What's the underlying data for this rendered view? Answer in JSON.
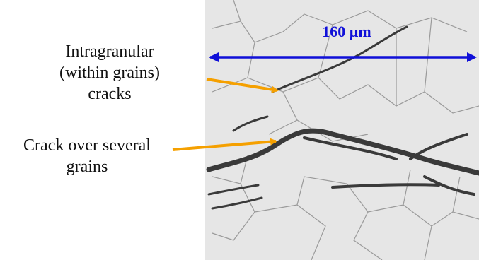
{
  "annotations": [
    {
      "lines": [
        "Intragranular",
        "(within grains)",
        "cracks"
      ]
    },
    {
      "lines": [
        "Crack over several",
        "grains"
      ]
    }
  ],
  "scale_bar": {
    "label": "160 µm"
  }
}
